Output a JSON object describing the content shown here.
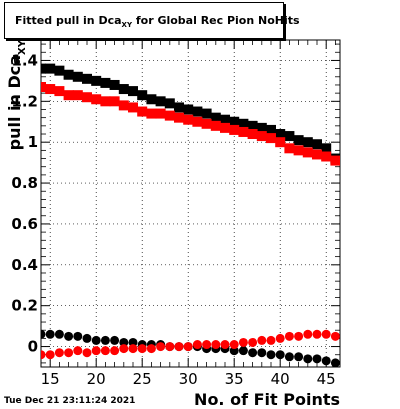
{
  "title": {
    "main": "Fitted pull in Dca",
    "sub": "XY",
    "rest": " for Global Rec Pion NoHits"
  },
  "timestamp": "Tue Dec 21 23:11:24 2021",
  "chart_data": {
    "type": "scatter",
    "title": "Fitted pull in Dca_XY for Global Rec Pion NoHits",
    "xlabel": "No. of Fit Points",
    "ylabel": "pull in Dca_XY",
    "xlim": [
      14,
      46.5
    ],
    "ylim": [
      -0.1,
      1.5
    ],
    "x_ticks": [
      15,
      20,
      25,
      30,
      35,
      40,
      45
    ],
    "y_ticks": [
      0,
      0.2,
      0.4,
      0.6,
      0.8,
      1,
      1.2,
      1.4
    ],
    "grid": true,
    "x": [
      14,
      15,
      16,
      17,
      18,
      19,
      20,
      21,
      22,
      23,
      24,
      25,
      26,
      27,
      28,
      29,
      30,
      31,
      32,
      33,
      34,
      35,
      36,
      37,
      38,
      39,
      40,
      41,
      42,
      43,
      44,
      45,
      46
    ],
    "series": [
      {
        "color": "#000000",
        "marker": "square",
        "values": [
          1.36,
          1.36,
          1.35,
          1.33,
          1.32,
          1.31,
          1.3,
          1.29,
          1.28,
          1.26,
          1.25,
          1.23,
          1.21,
          1.2,
          1.19,
          1.17,
          1.16,
          1.15,
          1.14,
          1.12,
          1.11,
          1.1,
          1.09,
          1.08,
          1.07,
          1.06,
          1.04,
          1.03,
          1.01,
          1.0,
          0.99,
          0.97,
          0.92
        ]
      },
      {
        "color": "#ff0000",
        "marker": "square",
        "values": [
          1.27,
          1.26,
          1.25,
          1.23,
          1.23,
          1.22,
          1.21,
          1.2,
          1.2,
          1.18,
          1.17,
          1.15,
          1.14,
          1.14,
          1.13,
          1.12,
          1.11,
          1.1,
          1.09,
          1.08,
          1.07,
          1.06,
          1.05,
          1.04,
          1.03,
          1.02,
          1.0,
          0.97,
          0.96,
          0.95,
          0.94,
          0.93,
          0.91
        ]
      },
      {
        "color": "#000000",
        "marker": "circle",
        "values": [
          0.06,
          0.06,
          0.06,
          0.05,
          0.05,
          0.04,
          0.03,
          0.03,
          0.03,
          0.02,
          0.02,
          0.01,
          0.01,
          0.01,
          0.0,
          0.0,
          0.0,
          0.0,
          -0.01,
          -0.01,
          -0.01,
          -0.02,
          -0.02,
          -0.03,
          -0.03,
          -0.04,
          -0.04,
          -0.05,
          -0.05,
          -0.06,
          -0.06,
          -0.07,
          -0.08
        ]
      },
      {
        "color": "#ff0000",
        "marker": "circle",
        "values": [
          -0.04,
          -0.04,
          -0.03,
          -0.03,
          -0.02,
          -0.03,
          -0.02,
          -0.02,
          -0.02,
          -0.01,
          -0.01,
          -0.01,
          -0.01,
          0.0,
          0.0,
          0.0,
          0.0,
          0.01,
          0.01,
          0.01,
          0.01,
          0.01,
          0.02,
          0.02,
          0.03,
          0.03,
          0.04,
          0.05,
          0.05,
          0.06,
          0.06,
          0.06,
          0.05
        ]
      }
    ]
  }
}
